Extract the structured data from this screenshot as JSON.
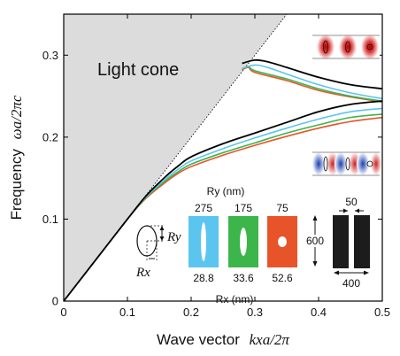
{
  "chart_data": {
    "type": "line",
    "xlabel_prefix": "Wave vector",
    "xlabel_math": "kxa/2π",
    "ylabel_prefix": "Frequency",
    "ylabel_math": "ωa/2πc",
    "xlim": [
      0,
      0.5
    ],
    "ylim": [
      0,
      0.35
    ],
    "xticks": [
      "0",
      "0.1",
      "0.2",
      "0.3",
      "0.4",
      "0.5"
    ],
    "yticks": [
      "0",
      "0.1",
      "0.2",
      "0.3"
    ],
    "light_cone_label": "Light cone",
    "light_line_slope": 1.0,
    "colors": {
      "black": "#000000",
      "blue": "#5bc5f0",
      "green": "#3cb54a",
      "red": "#e8542a",
      "cone": "#dcdcdc"
    },
    "series": [
      {
        "color": "#000000",
        "lower": {
          "x": [
            0,
            0.05,
            0.1,
            0.13,
            0.16,
            0.18,
            0.2,
            0.25,
            0.3,
            0.35,
            0.4,
            0.45,
            0.5
          ],
          "y": [
            0,
            0.05,
            0.1,
            0.129,
            0.152,
            0.165,
            0.176,
            0.192,
            0.205,
            0.218,
            0.231,
            0.24,
            0.244
          ]
        },
        "upper": {
          "x": [
            0.28,
            0.3,
            0.32,
            0.35,
            0.4,
            0.45,
            0.5
          ],
          "y": [
            0.29,
            0.294,
            0.292,
            0.285,
            0.273,
            0.264,
            0.259
          ]
        }
      },
      {
        "color": "#5bc5f0",
        "lower": {
          "x": [
            0,
            0.05,
            0.1,
            0.13,
            0.16,
            0.18,
            0.2,
            0.25,
            0.3,
            0.35,
            0.4,
            0.45,
            0.5
          ],
          "y": [
            0,
            0.05,
            0.1,
            0.128,
            0.149,
            0.161,
            0.171,
            0.186,
            0.199,
            0.211,
            0.222,
            0.231,
            0.235
          ]
        },
        "upper": {
          "x": [
            0.28,
            0.3,
            0.32,
            0.35,
            0.4,
            0.45,
            0.5
          ],
          "y": [
            0.284,
            0.288,
            0.285,
            0.277,
            0.264,
            0.254,
            0.247
          ]
        }
      },
      {
        "color": "#3cb54a",
        "lower": {
          "x": [
            0,
            0.05,
            0.1,
            0.13,
            0.16,
            0.18,
            0.2,
            0.25,
            0.3,
            0.35,
            0.4,
            0.45,
            0.5
          ],
          "y": [
            0,
            0.05,
            0.1,
            0.127,
            0.147,
            0.158,
            0.167,
            0.181,
            0.193,
            0.205,
            0.215,
            0.224,
            0.228
          ]
        },
        "upper": {
          "x": [
            0.28,
            0.29,
            0.3,
            0.35,
            0.4,
            0.45,
            0.5
          ],
          "y": [
            0.283,
            0.286,
            0.281,
            0.271,
            0.259,
            0.25,
            0.244
          ]
        }
      },
      {
        "color": "#e8542a",
        "lower": {
          "x": [
            0,
            0.05,
            0.1,
            0.13,
            0.16,
            0.18,
            0.2,
            0.25,
            0.3,
            0.35,
            0.4,
            0.45,
            0.5
          ],
          "y": [
            0,
            0.05,
            0.1,
            0.126,
            0.145,
            0.156,
            0.164,
            0.178,
            0.19,
            0.201,
            0.211,
            0.219,
            0.224
          ]
        },
        "upper": {
          "x": [
            0.28,
            0.29,
            0.3,
            0.35,
            0.4,
            0.45,
            0.5
          ],
          "y": [
            0.282,
            0.285,
            0.279,
            0.269,
            0.257,
            0.249,
            0.243
          ]
        }
      }
    ],
    "inset": {
      "ry_label": "Ry (nm)",
      "rx_label": "Rx (nm)",
      "holes": [
        {
          "ry": "275",
          "rx": "28.8",
          "color": "#5bc5f0"
        },
        {
          "ry": "175",
          "rx": "33.6",
          "color": "#3cb54a"
        },
        {
          "ry": "75",
          "rx": "52.6",
          "color": "#e8542a"
        }
      ],
      "ellipse_rx": "Rx",
      "ellipse_ry": "Ry",
      "slot_width": "50",
      "beam_height": "600",
      "beam_width": "400"
    }
  }
}
